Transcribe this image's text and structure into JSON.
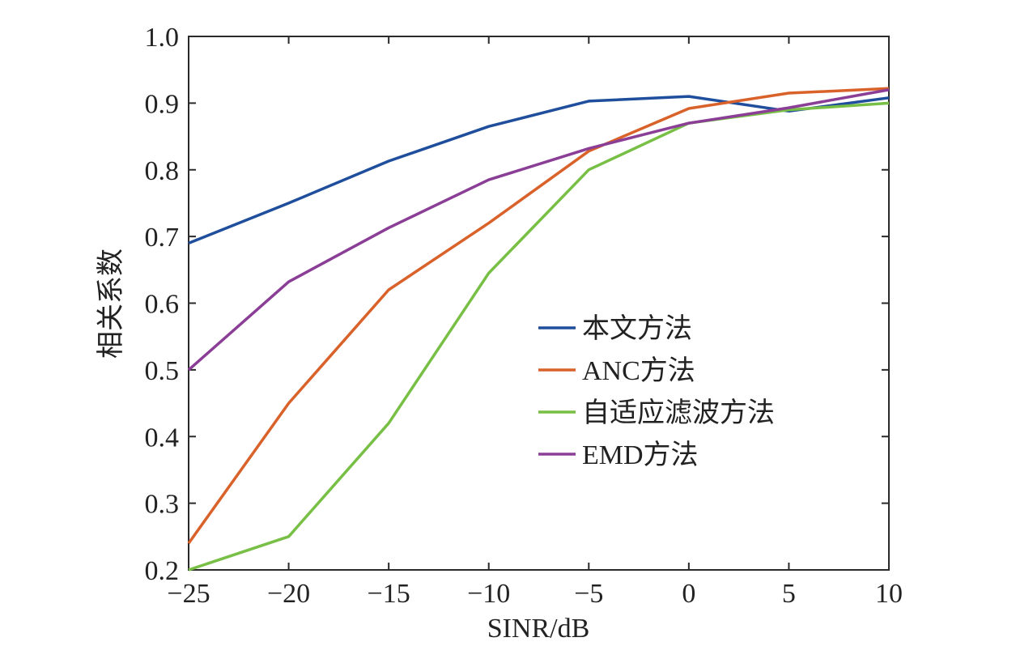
{
  "chart_data": {
    "type": "line",
    "title": "",
    "xlabel": "SINR/dB",
    "ylabel": "相关系数",
    "x": [
      -25,
      -20,
      -15,
      -10,
      -5,
      0,
      5,
      10
    ],
    "xlim": [
      -25,
      10
    ],
    "ylim": [
      0.2,
      1.0
    ],
    "xticks": [
      -25,
      -20,
      -15,
      -10,
      -5,
      0,
      5,
      10
    ],
    "xtick_labels": [
      "−25",
      "−20",
      "−15",
      "−10",
      "−5",
      "0",
      "5",
      "10"
    ],
    "yticks": [
      0.2,
      0.3,
      0.4,
      0.5,
      0.6,
      0.7,
      0.8,
      0.9,
      1.0
    ],
    "ytick_labels": [
      "0.2",
      "0.3",
      "0.4",
      "0.5",
      "0.6",
      "0.7",
      "0.8",
      "0.9",
      "1.0"
    ],
    "grid": false,
    "legend_position": "center-right",
    "series": [
      {
        "name": "本文方法",
        "color": "#1f4e9c",
        "values": [
          0.69,
          0.75,
          0.813,
          0.865,
          0.903,
          0.91,
          0.888,
          0.908
        ]
      },
      {
        "name": "ANC方法",
        "color": "#d9622b",
        "values": [
          0.24,
          0.45,
          0.62,
          0.72,
          0.828,
          0.892,
          0.915,
          0.922
        ]
      },
      {
        "name": "自适应滤波方法",
        "color": "#77bf45",
        "values": [
          0.2,
          0.25,
          0.42,
          0.645,
          0.8,
          0.87,
          0.89,
          0.9
        ]
      },
      {
        "name": "EMD方法",
        "color": "#8a3e96",
        "values": [
          0.5,
          0.632,
          0.713,
          0.785,
          0.832,
          0.87,
          0.893,
          0.92
        ]
      }
    ]
  }
}
